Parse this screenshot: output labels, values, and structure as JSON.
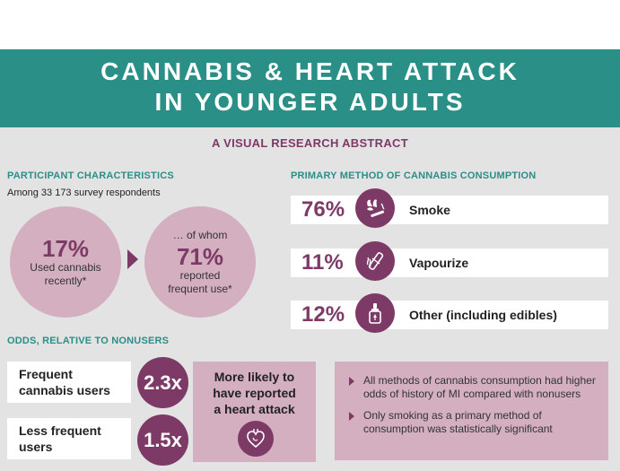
{
  "header": {
    "title_line1": "CANNABIS & HEART ATTACK",
    "title_line2": "IN YOUNGER ADULTS",
    "subtitle": "A VISUAL RESEARCH ABSTRACT"
  },
  "participants": {
    "heading": "PARTICIPANT CHARACTERISTICS",
    "note": "Among 33 173 survey respondents",
    "recent": {
      "pct": "17%",
      "line1": "Used cannabis",
      "line2": "recently*"
    },
    "frequent": {
      "pre": "… of whom",
      "pct": "71%",
      "line1": "reported",
      "line2": "frequent use*"
    }
  },
  "methods": {
    "heading": "PRIMARY METHOD OF CANNABIS CONSUMPTION",
    "items": [
      {
        "pct": "76%",
        "label": "Smoke",
        "icon": "cigarette-icon"
      },
      {
        "pct": "11%",
        "label": "Vapourize",
        "icon": "vape-icon"
      },
      {
        "pct": "12%",
        "label": "Other (including edibles)",
        "icon": "dropper-bottle-icon"
      }
    ]
  },
  "odds": {
    "heading": "ODDS, RELATIVE TO NONUSERS",
    "frequent": {
      "line1": "Frequent",
      "line2": "cannabis users",
      "value": "2.3x"
    },
    "less_frequent": {
      "line1": "Less frequent",
      "line2": "users",
      "value": "1.5x"
    },
    "likely_line1": "More likely to",
    "likely_line2": "have reported",
    "likely_line3": "a heart attack"
  },
  "findings": [
    "All methods of cannabis consumption had higher odds of history of MI compared with nonusers",
    "Only smoking as a primary method of consumption was statistically significant"
  ],
  "colors": {
    "teal": "#2a8f86",
    "plum": "#7d3a66",
    "pink": "#d3afbf",
    "gray": "#e3e3e3"
  }
}
